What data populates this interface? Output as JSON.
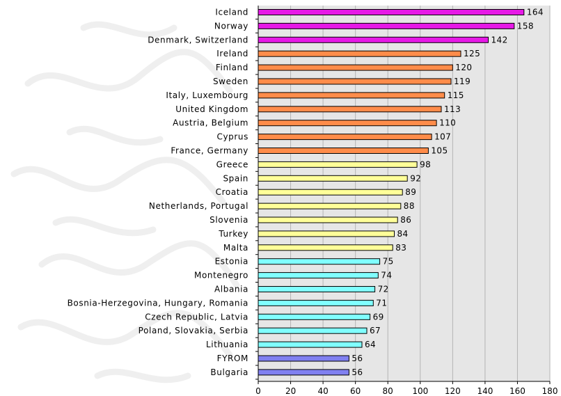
{
  "chart_data": {
    "type": "bar",
    "orientation": "horizontal",
    "title": "",
    "xlabel": "",
    "ylabel": "",
    "xlim": [
      0,
      180
    ],
    "x_ticks": [
      0,
      20,
      40,
      60,
      80,
      100,
      120,
      140,
      160,
      180
    ],
    "grid": "vertical",
    "legend": "none",
    "categories": [
      "Iceland",
      "Norway",
      "Denmark, Switzerland",
      "Ireland",
      "Finland",
      "Sweden",
      "Italy, Luxembourg",
      "United Kingdom",
      "Austria, Belgium",
      "Cyprus",
      "France, Germany",
      "Greece",
      "Spain",
      "Croatia",
      "Netherlands, Portugal",
      "Slovenia",
      "Turkey",
      "Malta",
      "Estonia",
      "Montenegro",
      "Albania",
      "Bosnia-Herzegovina, Hungary, Romania",
      "Czech Republic, Latvia",
      "Poland, Slovakia, Serbia",
      "Lithuania",
      "FYROM",
      "Bulgaria"
    ],
    "values": [
      164,
      158,
      142,
      125,
      120,
      119,
      115,
      113,
      110,
      107,
      105,
      98,
      92,
      89,
      88,
      86,
      84,
      83,
      75,
      74,
      72,
      71,
      69,
      67,
      64,
      56,
      56
    ],
    "value_labels": [
      "164",
      "158",
      "142",
      "125",
      "120",
      "119",
      "115",
      "113",
      "110",
      "107",
      "105",
      "98",
      "92",
      "89",
      "88",
      "86",
      "84",
      "83",
      "75",
      "74",
      "72",
      "71",
      "69",
      "67",
      "64",
      "56",
      "56"
    ],
    "bar_groups": [
      0,
      0,
      0,
      1,
      1,
      1,
      1,
      1,
      1,
      1,
      1,
      2,
      2,
      2,
      2,
      2,
      2,
      2,
      3,
      3,
      3,
      3,
      3,
      3,
      3,
      4,
      4
    ],
    "group_colors": [
      "#e619e6",
      "#ff8c4a",
      "#ffff99",
      "#80ffff",
      "#8080f0"
    ],
    "colors": {
      "plot_background": "#e6e6e6",
      "gridline": "#b4b4b4",
      "axis": "#000000",
      "bar_outline": "#000000"
    }
  }
}
